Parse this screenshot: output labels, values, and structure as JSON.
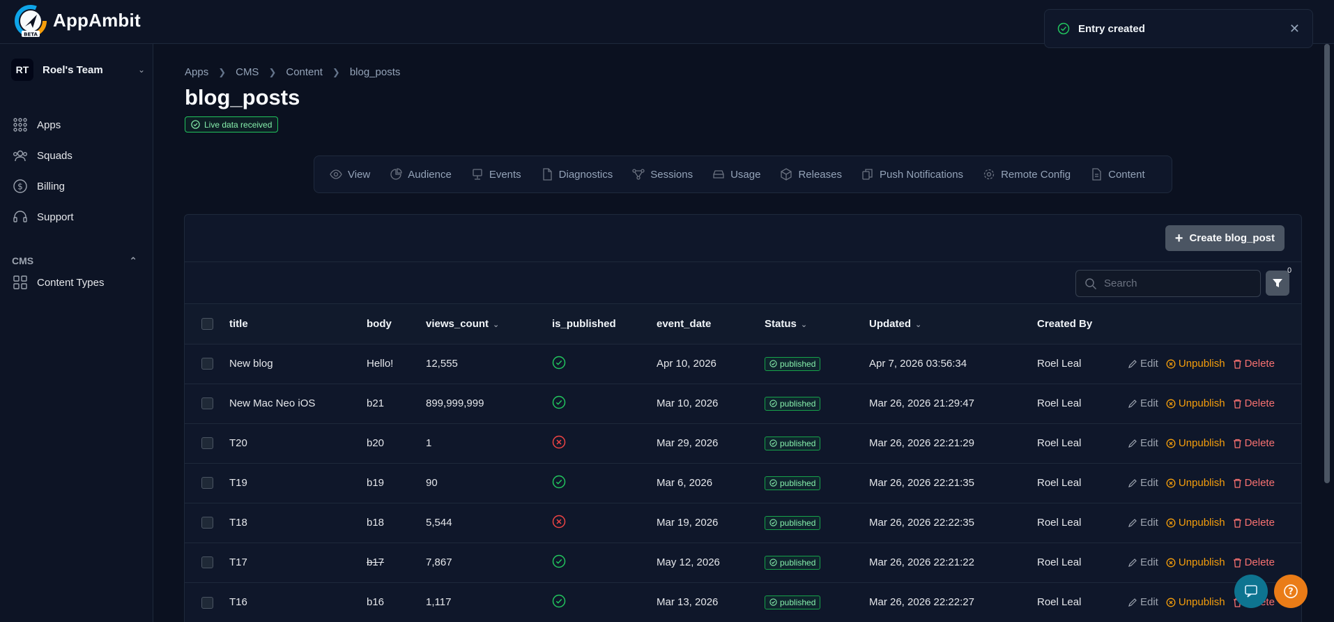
{
  "app": {
    "brand": "AppAmbit",
    "beta": "BETA"
  },
  "team": {
    "initials": "RT",
    "name": "Roel's Team"
  },
  "sidebar": {
    "items": [
      {
        "label": "Apps",
        "icon": "grid-dots-icon"
      },
      {
        "label": "Squads",
        "icon": "users-icon"
      },
      {
        "label": "Billing",
        "icon": "dollar-circle-icon"
      },
      {
        "label": "Support",
        "icon": "headset-icon"
      }
    ],
    "cms_label": "CMS",
    "cms_items": [
      {
        "label": "Content Types",
        "icon": "squares-icon"
      }
    ]
  },
  "breadcrumb": [
    "Apps",
    "CMS",
    "Content",
    "blog_posts"
  ],
  "page": {
    "title": "blog_posts",
    "live_badge": "Live data received"
  },
  "tabs": [
    {
      "label": "View",
      "icon": "eye-icon"
    },
    {
      "label": "Audience",
      "icon": "pie-icon"
    },
    {
      "label": "Events",
      "icon": "monitor-icon"
    },
    {
      "label": "Diagnostics",
      "icon": "file-icon"
    },
    {
      "label": "Sessions",
      "icon": "network-icon"
    },
    {
      "label": "Usage",
      "icon": "drive-icon"
    },
    {
      "label": "Releases",
      "icon": "cube-icon"
    },
    {
      "label": "Push Notifications",
      "icon": "copy-icon"
    },
    {
      "label": "Remote Config",
      "icon": "gear-icon"
    },
    {
      "label": "Content",
      "icon": "document-icon"
    }
  ],
  "toolbar": {
    "create_label": "Create blog_post",
    "search_placeholder": "Search",
    "filter_count": "0"
  },
  "table": {
    "headers": {
      "title": "title",
      "body": "body",
      "views_count": "views_count",
      "is_published": "is_published",
      "event_date": "event_date",
      "status": "Status",
      "updated": "Updated",
      "created_by": "Created By"
    },
    "actions": {
      "edit": "Edit",
      "unpublish": "Unpublish",
      "delete": "Delete"
    },
    "rows": [
      {
        "title": "New blog",
        "body": "Hello!",
        "views": "12,555",
        "published": true,
        "event_date": "Apr 10, 2026",
        "status": "published",
        "updated": "Apr 7, 2026 03:56:34",
        "created_by": "Roel Leal"
      },
      {
        "title": "New Mac Neo iOS",
        "body": "b21",
        "views": "899,999,999",
        "published": true,
        "event_date": "Mar 10, 2026",
        "status": "published",
        "updated": "Mar 26, 2026 21:29:47",
        "created_by": "Roel Leal"
      },
      {
        "title": "T20",
        "body": "b20",
        "views": "1",
        "published": false,
        "event_date": "Mar 29, 2026",
        "status": "published",
        "updated": "Mar 26, 2026 22:21:29",
        "created_by": "Roel Leal"
      },
      {
        "title": "T19",
        "body": "b19",
        "views": "90",
        "published": true,
        "event_date": "Mar 6, 2026",
        "status": "published",
        "updated": "Mar 26, 2026 22:21:35",
        "created_by": "Roel Leal"
      },
      {
        "title": "T18",
        "body": "b18",
        "views": "5,544",
        "published": false,
        "event_date": "Mar 19, 2026",
        "status": "published",
        "updated": "Mar 26, 2026 22:22:35",
        "created_by": "Roel Leal"
      },
      {
        "title": "T17",
        "body": "b17",
        "body_struck": true,
        "views": "7,867",
        "published": true,
        "event_date": "May 12, 2026",
        "status": "published",
        "updated": "Mar 26, 2026 22:21:22",
        "created_by": "Roel Leal"
      },
      {
        "title": "T16",
        "body": "b16",
        "views": "1,117",
        "published": true,
        "event_date": "Mar 13, 2026",
        "status": "published",
        "updated": "Mar 26, 2026 22:22:27",
        "created_by": "Roel Leal"
      }
    ]
  },
  "toast": {
    "message": "Entry created"
  },
  "colors": {
    "accent_green": "#22c55e",
    "danger_red": "#ef4444",
    "warning_amber": "#f59e0b",
    "background": "#0b1120"
  }
}
